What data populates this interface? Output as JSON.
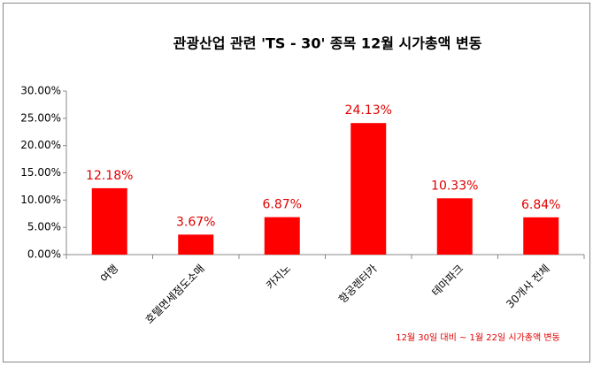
{
  "chart_data": {
    "type": "bar",
    "title": "관광산업 관련 'TS - 30' 종목 12월 시가총액 변동",
    "categories": [
      "여행",
      "호텔면세점도소매",
      "카지노",
      "항공렌터카",
      "테마파크",
      "30개사 전체"
    ],
    "values": [
      12.18,
      3.67,
      6.87,
      24.13,
      10.33,
      6.84
    ],
    "value_labels": [
      "12.18%",
      "3.67%",
      "6.87%",
      "24.13%",
      "10.33%",
      "6.84%"
    ],
    "color": "#ff0000",
    "ylim": [
      0,
      30
    ],
    "yticks": [
      {
        "value": 0,
        "label": "0.00%"
      },
      {
        "value": 5,
        "label": "5.00%"
      },
      {
        "value": 10,
        "label": "10.00%"
      },
      {
        "value": 15,
        "label": "15.00%"
      },
      {
        "value": 20,
        "label": "20.00%"
      },
      {
        "value": 25,
        "label": "25.00%"
      },
      {
        "value": 30,
        "label": "30.00%"
      }
    ],
    "grid": false,
    "annotation": "12월 30일 대비 ~ 1월 22일 시가총액 변동"
  }
}
